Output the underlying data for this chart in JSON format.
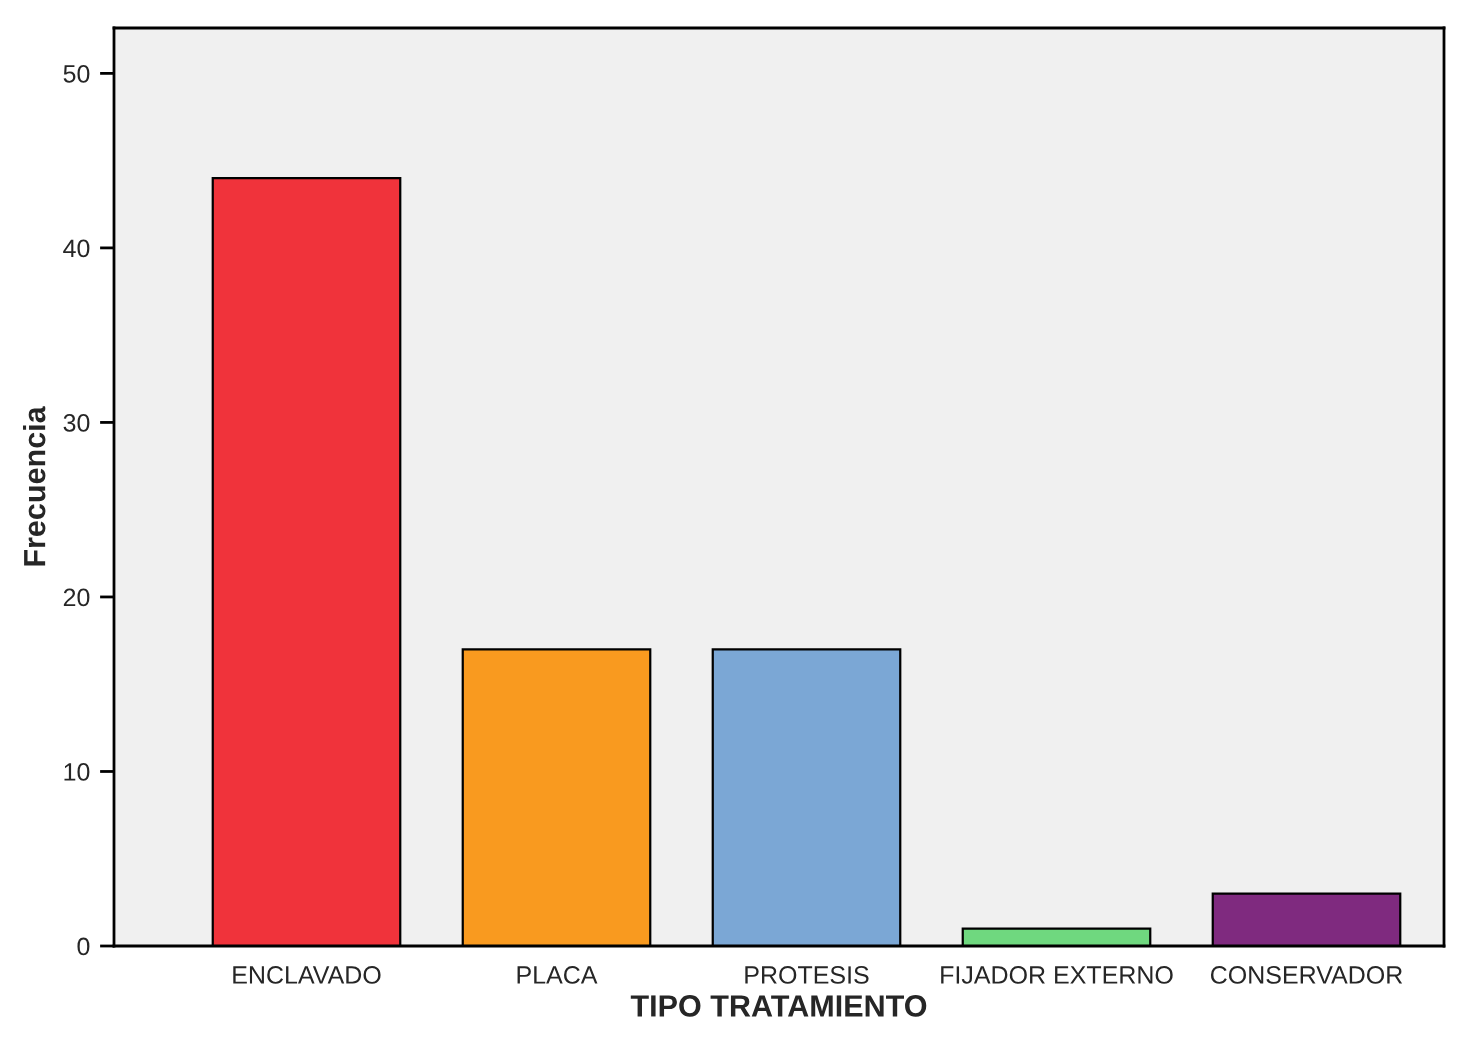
{
  "chart_data": {
    "type": "bar",
    "xlabel": "TIPO TRATAMIENTO",
    "ylabel": "Frecuencia",
    "categories": [
      "ENCLAVADO",
      "PLACA",
      "PROTESIS",
      "FIJADOR EXTERNO",
      "CONSERVADOR"
    ],
    "values": [
      44,
      17,
      17,
      1,
      3
    ],
    "colors": [
      "#f0333b",
      "#f99a1f",
      "#7ba7d5",
      "#6fd87f",
      "#7f2a7f"
    ],
    "ylim": [
      0,
      52.6
    ],
    "yticks": [
      0,
      10,
      20,
      30,
      40,
      50
    ],
    "grid": false,
    "legend": false
  }
}
